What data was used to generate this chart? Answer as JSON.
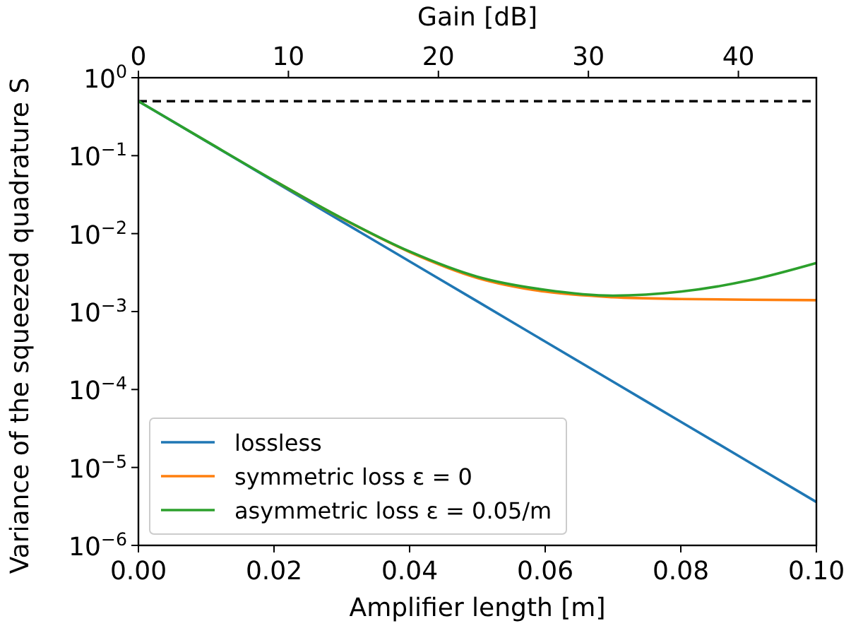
{
  "chart_data": {
    "type": "line",
    "xlabel": "Amplifier length [m]",
    "ylabel": "Variance of the squeezed quadrature S",
    "x2label": "Gain [dB]",
    "x": [
      0,
      0.01,
      0.02,
      0.03,
      0.04,
      0.05,
      0.06,
      0.07,
      0.08,
      0.09,
      0.1
    ],
    "series": [
      {
        "name": "lossless",
        "color": "#1f77b4",
        "values": [
          0.5,
          0.153,
          0.0469,
          0.01435,
          0.0044,
          0.00135,
          0.000412,
          0.000126,
          3.86e-05,
          1.18e-05,
          3.6e-06
        ]
      },
      {
        "name": "symmetric loss ε = 0",
        "color": "#ff7f0e",
        "values": [
          null,
          null,
          0.048,
          0.0157,
          0.0058,
          0.0027,
          0.0018,
          0.00153,
          0.00145,
          0.00142,
          0.0014
        ]
      },
      {
        "name": "asymmetric loss ε = 0.05/m",
        "color": "#2ca02c",
        "values": [
          0.5,
          0.154,
          0.048,
          0.0158,
          0.0059,
          0.0028,
          0.0019,
          0.0016,
          0.0018,
          0.0025,
          0.0042
        ]
      }
    ],
    "xlim": [
      0,
      0.1
    ],
    "xticks": [
      {
        "value": 0,
        "label": "0.00"
      },
      {
        "value": 0.02,
        "label": "0.02"
      },
      {
        "value": 0.04,
        "label": "0.04"
      },
      {
        "value": 0.06,
        "label": "0.06"
      },
      {
        "value": 0.08,
        "label": "0.08"
      },
      {
        "value": 0.1,
        "label": "0.10"
      }
    ],
    "x2lim": [
      0,
      45.2
    ],
    "x2ticks": [
      0,
      10,
      20,
      30,
      40
    ],
    "ylim": [
      1e-06,
      1
    ],
    "yticks": [
      {
        "value": 1,
        "label": "10$^{0}$"
      },
      {
        "value": 0.1,
        "label": "10$^{−1}$"
      },
      {
        "value": 0.01,
        "label": "10$^{−2}$"
      },
      {
        "value": 0.001,
        "label": "10$^{−3}$"
      },
      {
        "value": 0.0001,
        "label": "10$^{−4}$"
      },
      {
        "value": 1e-05,
        "label": "10$^{−5}$"
      },
      {
        "value": 1e-06,
        "label": "10$^{−6}$"
      }
    ],
    "log": "y",
    "grid": false,
    "legend": "bottom left",
    "line_style": "solid",
    "marker": "none",
    "ref_lines": [
      {
        "axis": "y",
        "value": 0.5,
        "color": "#000000",
        "line_style": "dashed"
      }
    ]
  }
}
